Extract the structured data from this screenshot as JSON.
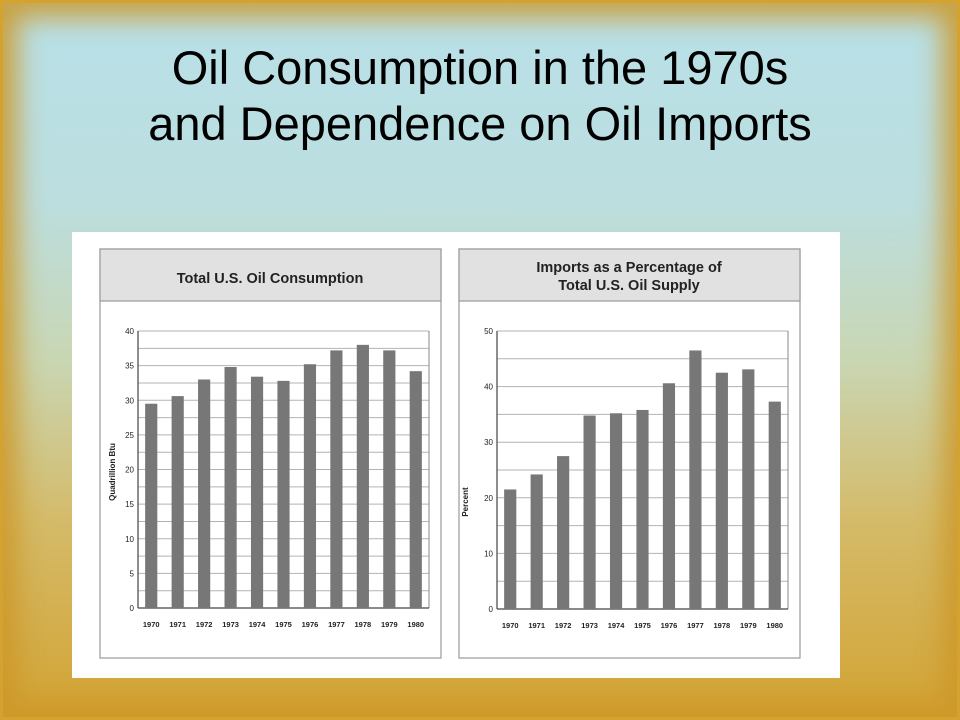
{
  "slide": {
    "title_line1": "Oil Consumption in the 1970s",
    "title_line2": "and Dependence on Oil Imports"
  },
  "chart_data": [
    {
      "type": "bar",
      "title": "Total U.S. Oil Consumption",
      "xlabel": "",
      "ylabel": "Quadrillion Btu",
      "categories": [
        "1970",
        "1971",
        "1972",
        "1973",
        "1974",
        "1975",
        "1976",
        "1977",
        "1978",
        "1979",
        "1980"
      ],
      "values": [
        29.5,
        30.6,
        33.0,
        34.8,
        33.4,
        32.8,
        35.2,
        37.2,
        38.0,
        37.2,
        34.2
      ],
      "ylim": [
        0,
        40
      ],
      "yticks": [
        0,
        5,
        10,
        15,
        20,
        25,
        30,
        35,
        40
      ],
      "grid": true,
      "bar_color": "#777777"
    },
    {
      "type": "bar",
      "title_line1": "Imports as a Percentage of",
      "title_line2": "Total U.S. Oil Supply",
      "xlabel": "",
      "ylabel": "Percent",
      "categories": [
        "1970",
        "1971",
        "1972",
        "1973",
        "1974",
        "1975",
        "1976",
        "1977",
        "1978",
        "1979",
        "1980"
      ],
      "values": [
        21.5,
        24.2,
        27.5,
        34.8,
        35.2,
        35.8,
        40.6,
        46.5,
        42.5,
        43.1,
        37.3
      ],
      "ylim": [
        0,
        50
      ],
      "yticks": [
        0,
        10,
        20,
        30,
        40,
        50
      ],
      "grid": true,
      "bar_color": "#777777"
    }
  ]
}
